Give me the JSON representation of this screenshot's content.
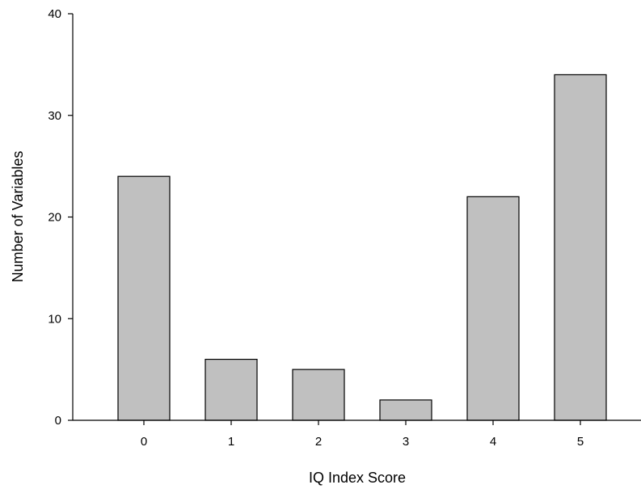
{
  "chart_data": {
    "type": "bar",
    "title": "",
    "xlabel": "IQ Index Score",
    "ylabel": "Number of Variables",
    "categories": [
      "0",
      "1",
      "2",
      "3",
      "4",
      "5"
    ],
    "values": [
      24,
      6,
      5,
      2,
      22,
      34
    ],
    "ylim": [
      0,
      40
    ],
    "yticks": [
      "0",
      "10",
      "20",
      "30",
      "40"
    ],
    "grid": false,
    "legend": "none",
    "colors": {
      "bar_fill": "#c0c0c0",
      "bar_stroke": "#000000",
      "axis": "#000000"
    }
  }
}
